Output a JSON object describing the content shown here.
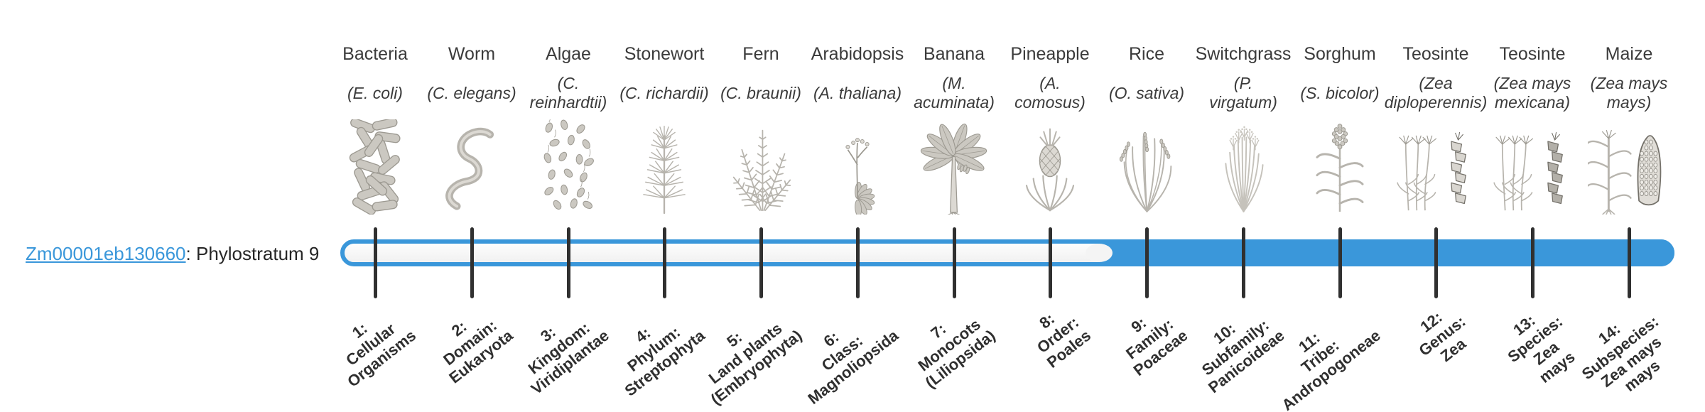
{
  "gene": {
    "id": "Zm00001eb130660",
    "suffix": ": Phylostratum 9",
    "phylostratum": 9
  },
  "colors": {
    "bar_blue": "#3a97da",
    "bar_track": "#f5f5f5",
    "tick": "#303030",
    "link": "#3a97da",
    "text": "#3b3b3b"
  },
  "timeline": {
    "filled_from_stratum": 9,
    "total_strata": 14
  },
  "strata": [
    {
      "num": 1,
      "organism": "Bacteria",
      "species_lines": [
        "(E. coli)"
      ],
      "icon": "bacteria-illustration",
      "label_lines": [
        "1:",
        "Cellular",
        "Organisms"
      ]
    },
    {
      "num": 2,
      "organism": "Worm",
      "species_lines": [
        "(C. elegans)"
      ],
      "icon": "worm-illustration",
      "label_lines": [
        "2:",
        "Domain:",
        "Eukaryota"
      ]
    },
    {
      "num": 3,
      "organism": "Algae",
      "species_lines": [
        "(C.",
        "reinhardtii)"
      ],
      "icon": "algae-illustration",
      "label_lines": [
        "3:",
        "Kingdom:",
        "Viridiplantae"
      ]
    },
    {
      "num": 4,
      "organism": "Stonewort",
      "species_lines": [
        "(C. richardii)"
      ],
      "icon": "stonewort-illustration",
      "label_lines": [
        "4:",
        "Phylum:",
        "Streptophyta"
      ]
    },
    {
      "num": 5,
      "organism": "Fern",
      "species_lines": [
        "(C. braunii)"
      ],
      "icon": "fern-illustration",
      "label_lines": [
        "5:",
        "Land plants",
        "(Embryophyta)"
      ]
    },
    {
      "num": 6,
      "organism": "Arabidopsis",
      "species_lines": [
        "(A. thaliana)"
      ],
      "icon": "arabidopsis-illustration",
      "label_lines": [
        "6:",
        "Class:",
        "Magnoliopsida"
      ]
    },
    {
      "num": 7,
      "organism": "Banana",
      "species_lines": [
        "(M.",
        "acuminata)"
      ],
      "icon": "banana-plant-illustration",
      "label_lines": [
        "7:",
        "Monocots",
        "(Liliopsida)"
      ]
    },
    {
      "num": 8,
      "organism": "Pineapple",
      "species_lines": [
        "(A.",
        "comosus)"
      ],
      "icon": "pineapple-illustration",
      "label_lines": [
        "8:",
        "Order:",
        "Poales"
      ]
    },
    {
      "num": 9,
      "organism": "Rice",
      "species_lines": [
        "(O. sativa)"
      ],
      "icon": "rice-illustration",
      "label_lines": [
        "9:",
        "Family:",
        "Poaceae"
      ]
    },
    {
      "num": 10,
      "organism": "Switchgrass",
      "species_lines": [
        "(P.",
        "virgatum)"
      ],
      "icon": "switchgrass-illustration",
      "label_lines": [
        "10:",
        "Subfamily:",
        "Panicoideae"
      ]
    },
    {
      "num": 11,
      "organism": "Sorghum",
      "species_lines": [
        "(S. bicolor)"
      ],
      "icon": "sorghum-illustration",
      "label_lines": [
        "11:",
        "Tribe:",
        "Andropogoneae"
      ]
    },
    {
      "num": 12,
      "organism": "Teosinte",
      "species_lines": [
        "(Zea",
        "diploperennis)"
      ],
      "icon": "teosinte-diploperennis-illustration",
      "label_lines": [
        "12:",
        "Genus:",
        "Zea"
      ]
    },
    {
      "num": 13,
      "organism": "Teosinte",
      "species_lines": [
        "(Zea mays",
        "mexicana)"
      ],
      "icon": "teosinte-mexicana-illustration",
      "label_lines": [
        "13:",
        "Species:",
        "Zea",
        "mays"
      ]
    },
    {
      "num": 14,
      "organism": "Maize",
      "species_lines": [
        "(Zea mays",
        "mays)"
      ],
      "icon": "maize-illustration",
      "label_lines": [
        "14:",
        "Subspecies:",
        "Zea mays",
        "mays"
      ]
    }
  ]
}
